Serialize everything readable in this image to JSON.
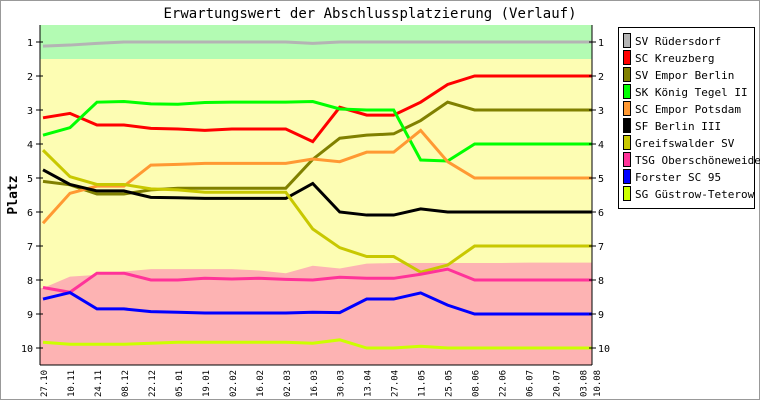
{
  "chart_data": {
    "type": "line",
    "title": "Erwartungswert der Abschlussplatzierung (Verlauf)",
    "ylabel": "Platz",
    "xlabel": "",
    "ylim": [
      1,
      10
    ],
    "y_inverted": true,
    "y_ticks": [
      "1",
      "2",
      "3",
      "4",
      "5",
      "6",
      "7",
      "8",
      "9",
      "10"
    ],
    "categories": [
      "27.10",
      "10.11",
      "24.11",
      "08.12",
      "22.12",
      "05.01",
      "19.01",
      "02.02",
      "16.02",
      "02.03",
      "16.03",
      "30.03",
      "13.04",
      "27.04",
      "11.05",
      "25.05",
      "08.06",
      "22.06",
      "06.07",
      "20.07",
      "03.08",
      "10.08"
    ],
    "x_weeks": [
      0,
      2,
      4,
      6,
      8,
      10,
      12,
      14,
      16,
      18,
      20,
      22,
      24,
      26,
      28,
      30,
      32,
      34,
      36,
      38,
      40,
      41
    ],
    "bands": {
      "top_zone_until_rank": 1.5,
      "top_color": "#b3fbb3",
      "middle_color": "#fdfdb3",
      "bottom_color": "#fdb3b3",
      "bottom_zone_from_rank": [
        8.24,
        7.9,
        7.85,
        7.75,
        7.68,
        7.68,
        7.68,
        7.68,
        7.72,
        7.8,
        7.58,
        7.66,
        7.52,
        7.5,
        7.5,
        7.5,
        7.5,
        7.5,
        7.49,
        7.49,
        7.49,
        7.49
      ]
    },
    "legend_position": "right",
    "series": [
      {
        "name": "SV Rüdersdorf",
        "color": "#b4b4b4",
        "values": [
          1.12,
          1.09,
          1.04,
          1.0,
          1.0,
          1.0,
          1.0,
          1.0,
          1.0,
          1.0,
          1.04,
          1.0,
          1.0,
          1.0,
          1.0,
          1.0,
          1.0,
          1.0,
          1.0,
          1.0,
          1.0,
          1.0
        ]
      },
      {
        "name": "SC Kreuzberg",
        "color": "#ff0000",
        "values": [
          3.23,
          3.1,
          3.44,
          3.44,
          3.54,
          3.56,
          3.6,
          3.56,
          3.56,
          3.56,
          3.93,
          2.92,
          3.15,
          3.15,
          2.77,
          2.25,
          2.0,
          2.0,
          2.0,
          2.0,
          2.0,
          2.0
        ]
      },
      {
        "name": "SV Empor Berlin",
        "color": "#808000",
        "values": [
          5.1,
          5.2,
          5.47,
          5.47,
          5.35,
          5.3,
          5.3,
          5.3,
          5.3,
          5.3,
          4.45,
          3.83,
          3.74,
          3.7,
          3.31,
          2.77,
          3.0,
          3.0,
          3.0,
          3.0,
          3.0,
          3.0
        ]
      },
      {
        "name": "SK König Tegel II",
        "color": "#00ff00",
        "values": [
          3.74,
          3.52,
          2.77,
          2.75,
          2.82,
          2.83,
          2.78,
          2.77,
          2.77,
          2.77,
          2.75,
          2.97,
          3.0,
          3.0,
          4.47,
          4.5,
          4.0,
          4.0,
          4.0,
          4.0,
          4.0,
          4.0
        ]
      },
      {
        "name": "SC Empor Potsdam",
        "color": "#ff9933",
        "values": [
          6.33,
          5.45,
          5.24,
          5.24,
          4.62,
          4.6,
          4.57,
          4.57,
          4.57,
          4.57,
          4.44,
          4.52,
          4.24,
          4.24,
          3.6,
          4.52,
          5.0,
          5.0,
          5.0,
          5.0,
          5.0,
          5.0
        ]
      },
      {
        "name": "SF Berlin III",
        "color": "#000000",
        "values": [
          4.76,
          5.19,
          5.38,
          5.38,
          5.57,
          5.58,
          5.6,
          5.6,
          5.6,
          5.6,
          5.16,
          6.0,
          6.09,
          6.09,
          5.91,
          6.0,
          6.0,
          6.0,
          6.0,
          6.0,
          6.0,
          6.0
        ]
      },
      {
        "name": "Greifswalder SV",
        "color": "#c8c800",
        "values": [
          4.18,
          4.96,
          5.19,
          5.19,
          5.32,
          5.35,
          5.42,
          5.42,
          5.42,
          5.42,
          6.5,
          7.05,
          7.31,
          7.31,
          7.77,
          7.56,
          7.0,
          7.0,
          7.0,
          7.0,
          7.0,
          7.0
        ]
      },
      {
        "name": "TSG Oberschöneweide",
        "color": "#ff3399",
        "values": [
          8.22,
          8.36,
          7.8,
          7.8,
          8.0,
          8.0,
          7.95,
          7.97,
          7.95,
          7.98,
          8.0,
          7.92,
          7.95,
          7.95,
          7.83,
          7.68,
          8.0,
          8.0,
          8.0,
          8.0,
          8.0,
          8.0
        ]
      },
      {
        "name": "Forster SC 95",
        "color": "#0000ff",
        "values": [
          8.56,
          8.37,
          8.85,
          8.85,
          8.93,
          8.95,
          8.97,
          8.97,
          8.97,
          8.97,
          8.95,
          8.96,
          8.56,
          8.56,
          8.38,
          8.74,
          9.0,
          9.0,
          9.0,
          9.0,
          9.0,
          9.0
        ]
      },
      {
        "name": "SG Güstrow-Teterow",
        "color": "#ccff00",
        "values": [
          9.83,
          9.89,
          9.89,
          9.89,
          9.86,
          9.83,
          9.83,
          9.83,
          9.83,
          9.83,
          9.86,
          9.76,
          10.0,
          10.0,
          9.95,
          10.0,
          10.0,
          10.0,
          10.0,
          10.0,
          10.0,
          10.0
        ]
      }
    ]
  }
}
